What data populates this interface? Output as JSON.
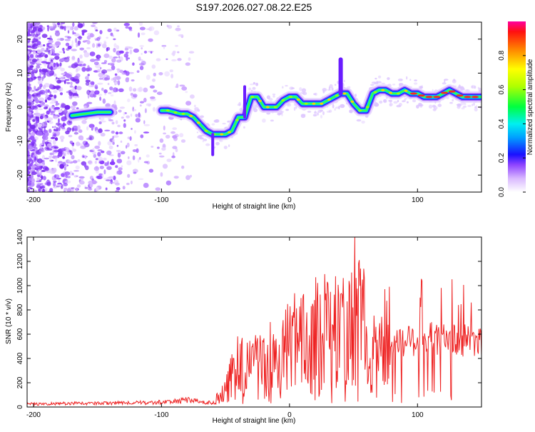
{
  "title": "S197.2026.027.08.22.E25",
  "chart_data": [
    {
      "type": "heatmap",
      "xlabel": "Height of straight line (km)",
      "ylabel": "Frequency (Hz)",
      "xlim": [
        -205,
        150
      ],
      "ylim": [
        -25,
        25
      ],
      "x_ticks": [
        -200,
        -100,
        0,
        100
      ],
      "y_ticks": [
        -20,
        -10,
        0,
        10,
        20
      ],
      "colorbar": {
        "label": "Normalized spectral amplitude",
        "range": [
          0,
          1
        ],
        "ticks": [
          "0.0",
          "0.2",
          "0.4",
          "0.6",
          "0.8"
        ]
      },
      "ridge": {
        "x": [
          -170,
          -160,
          -150,
          -140,
          -100,
          -95,
          -90,
          -85,
          -80,
          -75,
          -70,
          -65,
          -60,
          -55,
          -50,
          -45,
          -40,
          -35,
          -30,
          -25,
          -20,
          -15,
          -10,
          -5,
          0,
          5,
          10,
          15,
          20,
          25,
          30,
          35,
          40,
          45,
          50,
          55,
          60,
          65,
          70,
          75,
          80,
          85,
          90,
          95,
          100,
          105,
          110,
          115,
          120,
          125,
          130,
          135,
          140,
          145,
          150
        ],
        "freq": [
          -2.5,
          -2,
          -1.5,
          -1.5,
          -1,
          -1,
          -1.5,
          -2,
          -2,
          -3,
          -5,
          -7,
          -8,
          -8,
          -8,
          -7,
          -3,
          -3,
          3,
          3,
          0,
          0,
          0,
          2,
          3,
          3,
          1,
          1,
          1,
          1,
          2,
          3,
          4,
          4,
          1,
          -1,
          -1,
          4,
          5,
          5,
          4,
          4,
          5,
          4,
          4,
          3,
          3,
          3,
          4,
          5,
          4,
          3,
          3,
          3,
          3
        ]
      }
    },
    {
      "type": "line",
      "xlabel": "Height of straight line (km)",
      "ylabel": "SNR (10 * v/v)",
      "xlim": [
        -205,
        150
      ],
      "ylim": [
        0,
        1400
      ],
      "x_ticks": [
        -200,
        -100,
        0,
        100
      ],
      "y_ticks": [
        0,
        200,
        400,
        600,
        800,
        1000,
        1200,
        1400
      ],
      "series": [
        {
          "name": "SNR",
          "color": "#ee2222",
          "x": [
            -205,
            -190,
            -170,
            -150,
            -130,
            -110,
            -100,
            -90,
            -80,
            -75,
            -70,
            -65,
            -60,
            -55,
            -50,
            -45,
            -40,
            -35,
            -30,
            -25,
            -20,
            -15,
            -10,
            -5,
            0,
            10,
            20,
            30,
            40,
            50,
            60,
            70,
            80,
            90,
            100,
            110,
            120,
            130,
            140,
            150
          ],
          "values": [
            25,
            25,
            30,
            30,
            35,
            35,
            40,
            45,
            60,
            50,
            40,
            35,
            40,
            80,
            150,
            250,
            300,
            350,
            330,
            380,
            340,
            380,
            420,
            430,
            480,
            520,
            560,
            600,
            620,
            700,
            620,
            560,
            560,
            540,
            560,
            560,
            560,
            560,
            540,
            540
          ]
        }
      ],
      "peaks": [
        {
          "x": 51,
          "value": 1400
        },
        {
          "x": 57,
          "value": 1050
        },
        {
          "x": 40,
          "value": 930
        },
        {
          "x": 28,
          "value": 880
        },
        {
          "x": 45,
          "value": 870
        },
        {
          "x": -15,
          "value": 700
        },
        {
          "x": -33,
          "value": 530
        },
        {
          "x": 10,
          "value": 740
        }
      ]
    }
  ]
}
